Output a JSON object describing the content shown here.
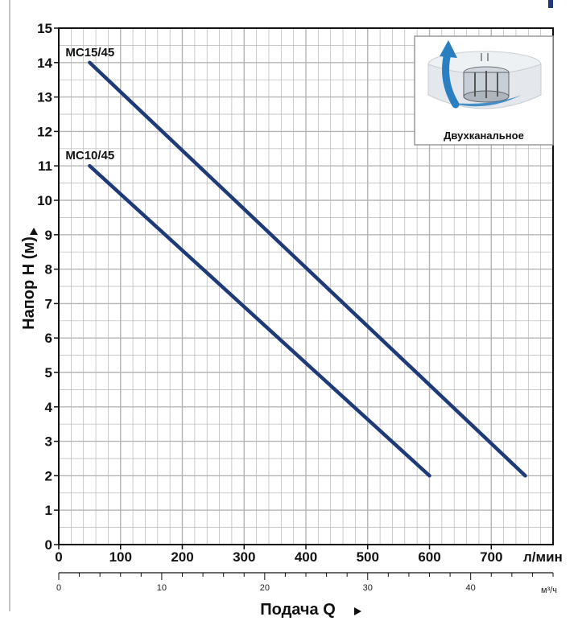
{
  "chart_data": {
    "type": "line",
    "xlabel": "Подача Q",
    "ylabel": "Напор H  (м)",
    "x_unit": "л/мин",
    "x2_unit": "м³/ч",
    "xlim": [
      0,
      800
    ],
    "ylim": [
      0,
      15
    ],
    "x_ticks": [
      0,
      100,
      200,
      300,
      400,
      500,
      600,
      700
    ],
    "y_ticks": [
      0,
      1,
      2,
      3,
      4,
      5,
      6,
      7,
      8,
      9,
      10,
      11,
      12,
      13,
      14,
      15
    ],
    "x2_ticks": [
      0,
      10,
      20,
      30,
      40
    ],
    "grid": true,
    "series": [
      {
        "name": "MC15/45",
        "x": [
          50,
          755
        ],
        "y": [
          14,
          2
        ]
      },
      {
        "name": "MC10/45",
        "x": [
          50,
          600
        ],
        "y": [
          11,
          2
        ]
      }
    ],
    "inset": {
      "caption": "Двухканальное"
    },
    "colors": {
      "line": "#1f3a78",
      "grid": "#b5b5b5",
      "axis": "#111111",
      "arrow": "#2a7fc0"
    }
  }
}
